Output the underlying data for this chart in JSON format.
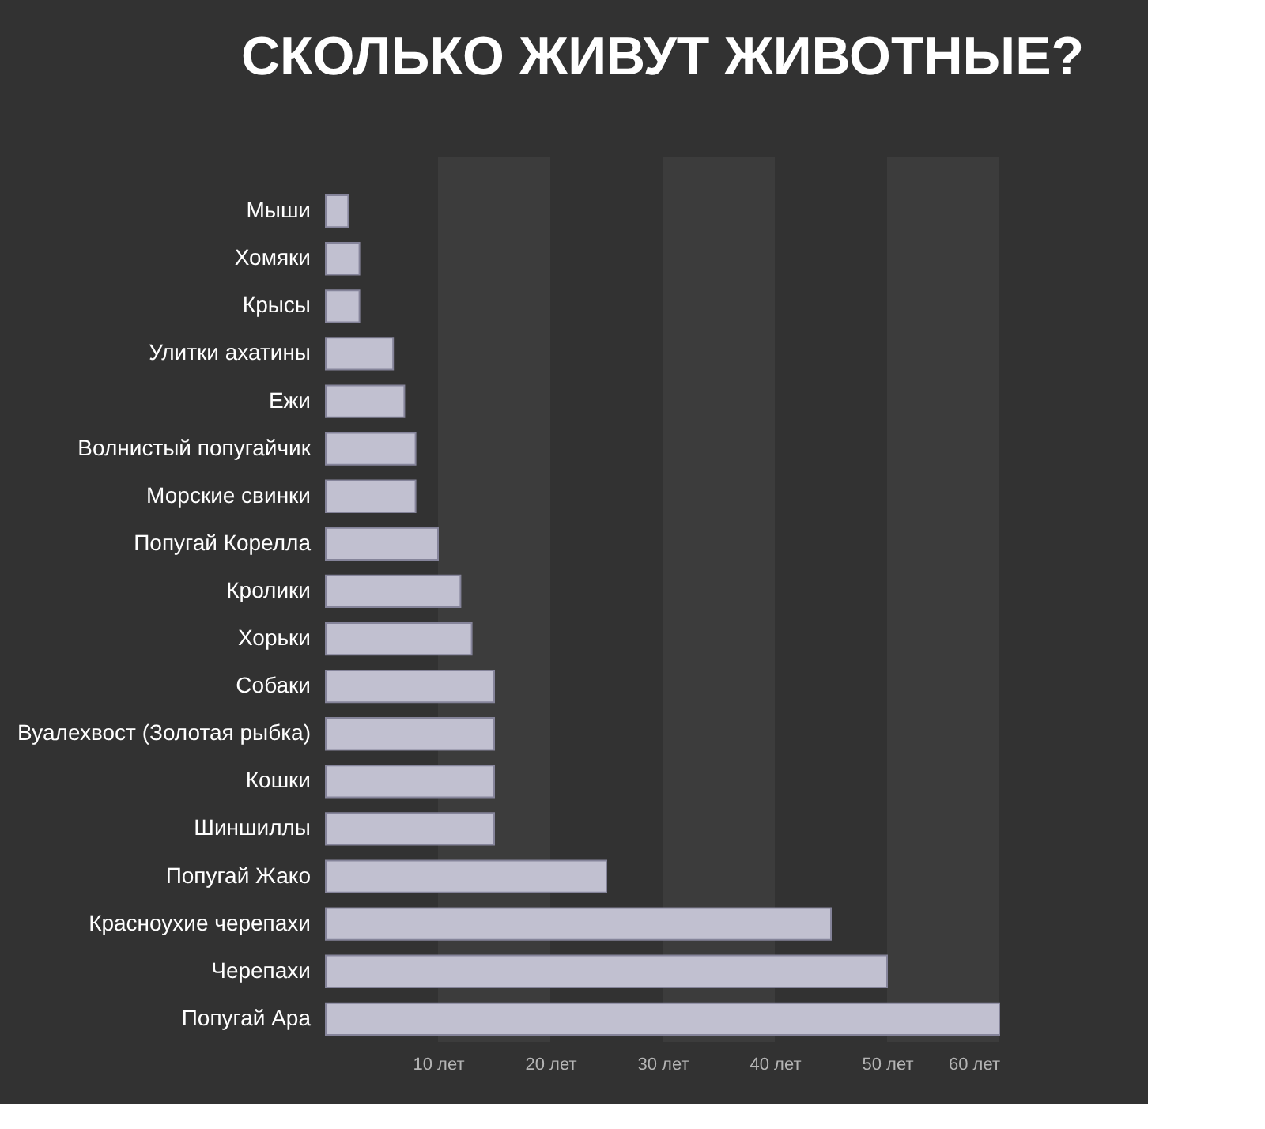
{
  "chart_data": {
    "type": "bar",
    "orientation": "horizontal",
    "title": "СКОЛЬКО ЖИВУТ ЖИВОТНЫЕ?",
    "categories": [
      "Мыши",
      "Хомяки",
      "Крысы",
      "Улитки ахатины",
      "Ежи",
      "Волнистый попугайчик",
      "Морские свинки",
      "Попугай Корелла",
      "Кролики",
      "Хорьки",
      "Собаки",
      "Вуалехвост (Золотая рыбка)",
      "Кошки",
      "Шиншиллы",
      "Попугай Жако",
      "Красноухие черепахи",
      "Черепахи",
      "Попугай Ара"
    ],
    "values": [
      2,
      3,
      3,
      6,
      7,
      8,
      8,
      10,
      12,
      13,
      15,
      15,
      15,
      15,
      25,
      45,
      50,
      60
    ],
    "color": "#c1c0d0",
    "xlim": [
      0,
      60
    ],
    "xticks": [
      {
        "value": 10,
        "label": "10 лет"
      },
      {
        "value": 20,
        "label": "20 лет"
      },
      {
        "value": 30,
        "label": "30 лет"
      },
      {
        "value": 40,
        "label": "40 лет"
      },
      {
        "value": 50,
        "label": "50 лет"
      },
      {
        "value": 60,
        "label": "60 лет"
      }
    ],
    "bands": [
      {
        "axis": "x",
        "from": 10,
        "to": 20,
        "color": "#3c3c3c"
      },
      {
        "axis": "x",
        "from": 30,
        "to": 40,
        "color": "#3c3c3c"
      },
      {
        "axis": "x",
        "from": 50,
        "to": 60,
        "color": "#3c3c3c"
      }
    ],
    "grid": false
  }
}
